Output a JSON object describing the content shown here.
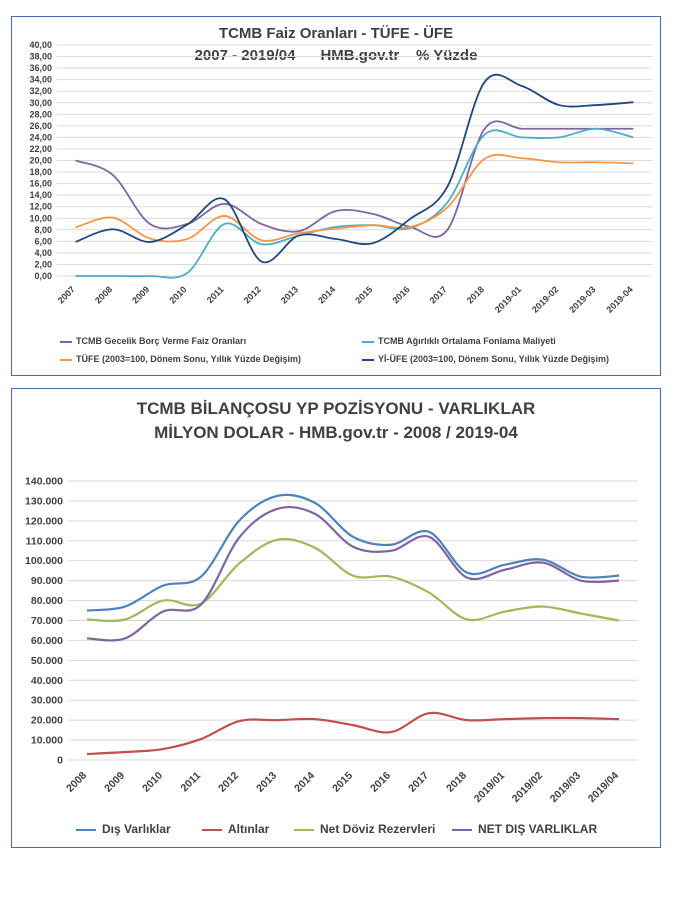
{
  "chart_data": [
    {
      "type": "line",
      "title": "TCMB Faiz Oranları - TÜFE - ÜFE",
      "subtitle": "2007 - 2019/04      HMB.gov.tr    % Yüzde",
      "categories": [
        "2007",
        "2008",
        "2009",
        "2010",
        "2011",
        "2012",
        "2013",
        "2014",
        "2015",
        "2016",
        "2017",
        "2018",
        "2019-01",
        "2019-02",
        "2019-03",
        "2019-04"
      ],
      "ylim": [
        0,
        40
      ],
      "yticks": [
        "0,00",
        "2,00",
        "4,00",
        "6,00",
        "8,00",
        "10,00",
        "12,00",
        "14,00",
        "16,00",
        "18,00",
        "20,00",
        "22,00",
        "24,00",
        "26,00",
        "28,00",
        "30,00",
        "32,00",
        "34,00",
        "36,00",
        "38,00",
        "40,00"
      ],
      "grid": true,
      "legend_position": "bottom",
      "series": [
        {
          "name": "TCMB Gecelik Borç Verme Faiz Oranları",
          "color": "#8064a2",
          "values": [
            20.0,
            17.5,
            9.0,
            9.0,
            12.5,
            9.0,
            7.75,
            11.25,
            10.75,
            8.5,
            8.0,
            25.5,
            25.5,
            25.5,
            25.5,
            25.5
          ]
        },
        {
          "name": "TCMB Ağırlıklı Ortalama Fonlama Maliyeti",
          "color": "#4bacc6",
          "values": [
            0.0,
            0.0,
            0.0,
            0.5,
            9.0,
            5.5,
            7.0,
            8.5,
            8.8,
            8.3,
            12.75,
            24.5,
            24.0,
            24.0,
            25.5,
            24.0
          ]
        },
        {
          "name": "TÜFE (2003=100, Dönem Sonu, Yıllık Yüzde Değişim)",
          "color": "#f79646",
          "values": [
            8.4,
            10.1,
            6.5,
            6.4,
            10.4,
            6.2,
            7.4,
            8.2,
            8.8,
            8.5,
            11.9,
            20.3,
            20.4,
            19.7,
            19.7,
            19.5
          ]
        },
        {
          "name": "Yİ-ÜFE (2003=100, Dönem Sonu, Yıllık Yüzde Değişim)",
          "color": "#1f497d",
          "values": [
            5.9,
            8.1,
            5.9,
            8.9,
            13.3,
            2.5,
            7.0,
            6.4,
            5.7,
            9.9,
            15.5,
            33.6,
            32.9,
            29.6,
            29.6,
            30.1
          ]
        }
      ]
    },
    {
      "type": "line",
      "title": "TCMB BİLANÇOSU YP POZİSYONU - VARLIKLAR",
      "subtitle": "MİLYON DOLAR - HMB.gov.tr - 2008 / 2019-04",
      "categories": [
        "2008",
        "2009",
        "2010",
        "2011",
        "2012",
        "2013",
        "2014",
        "2015",
        "2016",
        "2017",
        "2018",
        "2019/01",
        "2019/02",
        "2019/03",
        "2019/04"
      ],
      "ylim": [
        0,
        140000
      ],
      "yticks": [
        "0",
        "10.000",
        "20.000",
        "30.000",
        "40.000",
        "50.000",
        "60.000",
        "70.000",
        "80.000",
        "90.000",
        "100.000",
        "110.000",
        "120.000",
        "130.000",
        "140.000"
      ],
      "grid": true,
      "legend_position": "bottom",
      "series": [
        {
          "name": "Dış Varlıklar",
          "color": "#4f81bd",
          "values": [
            75000,
            77000,
            87500,
            92000,
            120000,
            132500,
            129000,
            112000,
            108000,
            114500,
            94000,
            98000,
            100500,
            92000,
            92500
          ]
        },
        {
          "name": "Altınlar",
          "color": "#c0504d",
          "values": [
            3000,
            4000,
            5500,
            10500,
            19500,
            20000,
            20500,
            17500,
            14000,
            23500,
            20000,
            20500,
            21000,
            21000,
            20500
          ]
        },
        {
          "name": "Net Döviz Rezervleri",
          "color": "#9bbb59",
          "values": [
            70500,
            70500,
            80000,
            78500,
            98500,
            110500,
            106500,
            92500,
            92000,
            84000,
            70500,
            74500,
            77000,
            73500,
            70000
          ]
        },
        {
          "name": "NET DIŞ VARLIKLAR",
          "color": "#8064a2",
          "values": [
            61000,
            61000,
            74500,
            78000,
            111500,
            126000,
            123500,
            107000,
            105000,
            112000,
            91500,
            95500,
            99000,
            90000,
            90000
          ]
        }
      ]
    }
  ]
}
